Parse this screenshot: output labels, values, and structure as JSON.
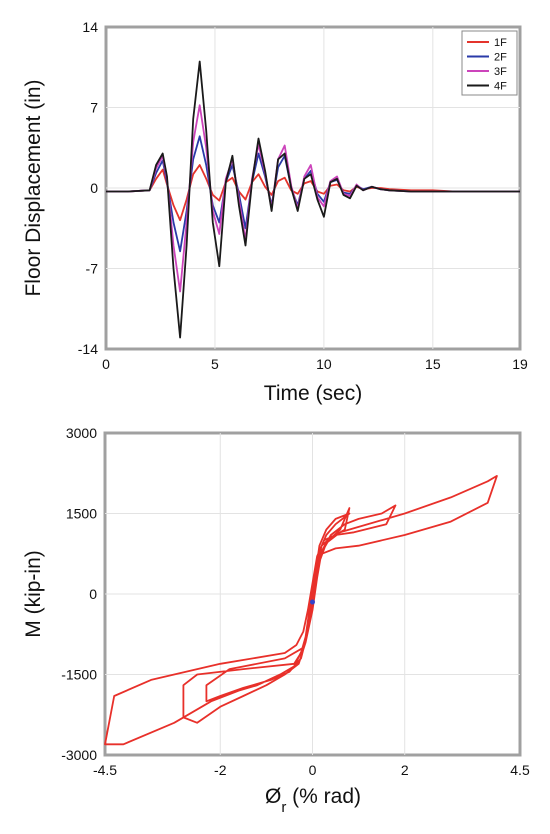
{
  "chart_data": [
    {
      "type": "line",
      "title": "",
      "xlabel": "Time (sec)",
      "ylabel": "Floor Displacement (in)",
      "xlim": [
        0,
        19
      ],
      "ylim": [
        -14,
        14
      ],
      "xticks": [
        0,
        5,
        10,
        15,
        19
      ],
      "yticks": [
        -14,
        -7,
        0,
        7,
        14
      ],
      "grid": true,
      "legend": "top-right",
      "x": [
        0,
        1,
        2,
        2.3,
        2.6,
        2.8,
        3.1,
        3.4,
        3.7,
        4.0,
        4.3,
        4.6,
        4.9,
        5.2,
        5.5,
        5.8,
        6.1,
        6.4,
        6.7,
        7.0,
        7.3,
        7.6,
        7.9,
        8.2,
        8.5,
        8.8,
        9.1,
        9.4,
        9.7,
        10.0,
        10.3,
        10.6,
        10.9,
        11.2,
        11.5,
        11.8,
        12.2,
        12.6,
        13.0,
        14.0,
        15.0,
        16.0,
        17.0,
        18.0,
        19.0
      ],
      "series": [
        {
          "name": "1F",
          "color": "#e4342c",
          "values": [
            -0.3,
            -0.3,
            -0.2,
            0.8,
            1.6,
            0.3,
            -1.5,
            -2.8,
            -1.0,
            1.2,
            2.0,
            0.8,
            -0.6,
            -1.1,
            0.5,
            0.9,
            -0.3,
            -1.0,
            0.5,
            1.2,
            0.1,
            -0.6,
            0.6,
            0.9,
            -0.2,
            -0.5,
            0.4,
            0.6,
            -0.3,
            -0.5,
            0.2,
            0.3,
            -0.2,
            -0.3,
            0.1,
            -0.1,
            0,
            0,
            -0.1,
            -0.2,
            -0.2,
            -0.3,
            -0.3,
            -0.3,
            -0.3
          ]
        },
        {
          "name": "2F",
          "color": "#2a3aa8",
          "values": [
            -0.3,
            -0.3,
            -0.2,
            1.3,
            2.4,
            0.5,
            -3.0,
            -5.5,
            -2.0,
            2.5,
            4.5,
            2.0,
            -1.5,
            -3.0,
            0.5,
            2.0,
            -0.5,
            -3.5,
            0.5,
            3.0,
            1.0,
            -1.5,
            1.8,
            2.8,
            0,
            -1.5,
            0.8,
            1.5,
            -0.5,
            -1.2,
            0.5,
            0.7,
            -0.4,
            -0.5,
            0.2,
            -0.1,
            0.1,
            -0.1,
            -0.2,
            -0.3,
            -0.3,
            -0.3,
            -0.3,
            -0.3,
            -0.3
          ]
        },
        {
          "name": "3F",
          "color": "#cc44bb",
          "values": [
            -0.3,
            -0.3,
            -0.2,
            1.7,
            2.8,
            0.8,
            -5.0,
            -9.0,
            -3.0,
            4.0,
            7.2,
            3.5,
            -2.0,
            -4.0,
            0.8,
            2.5,
            -1.0,
            -4.5,
            0.8,
            3.8,
            1.3,
            -1.8,
            2.5,
            3.7,
            0.2,
            -1.8,
            1.0,
            2.0,
            -0.8,
            -1.6,
            0.6,
            1.0,
            -0.5,
            -0.7,
            0.3,
            -0.2,
            0.1,
            -0.1,
            -0.2,
            -0.3,
            -0.3,
            -0.3,
            -0.3,
            -0.3,
            -0.3
          ]
        },
        {
          "name": "4F",
          "color": "#1a1a1a",
          "values": [
            -0.3,
            -0.3,
            -0.2,
            2.0,
            3.0,
            1.0,
            -7.0,
            -13.0,
            -5.0,
            6.0,
            11.0,
            5.0,
            -3.0,
            -6.8,
            0.5,
            2.8,
            -1.5,
            -5.0,
            0.5,
            4.3,
            1.5,
            -2.0,
            2.5,
            3.0,
            0,
            -2.0,
            0.8,
            1.2,
            -1.0,
            -2.5,
            0.5,
            0.8,
            -0.6,
            -0.9,
            0.2,
            -0.2,
            0.1,
            -0.1,
            -0.2,
            -0.3,
            -0.3,
            -0.3,
            -0.3,
            -0.3,
            -0.3
          ]
        }
      ]
    },
    {
      "type": "line",
      "title": "",
      "xlabel": "Ø",
      "xlabel_subscript": "r",
      "xlabel_unit": " (% rad)",
      "ylabel": "M (kip-in)",
      "xlim": [
        -4.5,
        4.5
      ],
      "ylim": [
        -3000,
        3000
      ],
      "xticks": [
        -4.5,
        -2,
        0,
        2,
        4.5
      ],
      "yticks": [
        -3000,
        -1500,
        0,
        1500,
        3000
      ],
      "grid": true,
      "series": [
        {
          "name": "",
          "color": "#e8302a",
          "points": [
            [
              0,
              -200
            ],
            [
              0.1,
              400
            ],
            [
              0.15,
              800
            ],
            [
              0.3,
              1100
            ],
            [
              0.5,
              1300
            ],
            [
              0.8,
              1500
            ],
            [
              0.5,
              1400
            ],
            [
              0.3,
              1200
            ],
            [
              0.15,
              900
            ],
            [
              0.05,
              300
            ],
            [
              -0.05,
              -300
            ],
            [
              -0.15,
              -800
            ],
            [
              -0.25,
              -1100
            ],
            [
              -0.4,
              -1300
            ],
            [
              -1.5,
              -1400
            ],
            [
              -2.5,
              -1500
            ],
            [
              -2.8,
              -1700
            ],
            [
              -2.8,
              -2300
            ],
            [
              -2.5,
              -2400
            ],
            [
              -2.0,
              -2100
            ],
            [
              -1.5,
              -1900
            ],
            [
              -1.0,
              -1700
            ],
            [
              -0.6,
              -1500
            ],
            [
              -0.3,
              -1300
            ],
            [
              -0.15,
              -900
            ],
            [
              0,
              -300
            ],
            [
              0.1,
              300
            ],
            [
              0.2,
              800
            ],
            [
              0.4,
              1100
            ],
            [
              0.7,
              1300
            ],
            [
              1.0,
              1400
            ],
            [
              1.5,
              1500
            ],
            [
              1.8,
              1650
            ],
            [
              1.6,
              1300
            ],
            [
              0.9,
              1150
            ],
            [
              0.5,
              1100
            ],
            [
              0.25,
              1000
            ],
            [
              0.1,
              700
            ],
            [
              0,
              200
            ],
            [
              -0.1,
              -300
            ],
            [
              -0.2,
              -700
            ],
            [
              -0.35,
              -950
            ],
            [
              -0.6,
              -1100
            ],
            [
              -2.0,
              -1300
            ],
            [
              -3.5,
              -1600
            ],
            [
              -4.3,
              -1900
            ],
            [
              -4.5,
              -2800
            ],
            [
              -4.1,
              -2800
            ],
            [
              -3.0,
              -2400
            ],
            [
              -2.2,
              -2000
            ],
            [
              -1.6,
              -1800
            ],
            [
              -1.2,
              -1700
            ],
            [
              -0.7,
              -1500
            ],
            [
              -0.4,
              -1350
            ],
            [
              -0.2,
              -1000
            ],
            [
              -0.05,
              -500
            ],
            [
              0.05,
              100
            ],
            [
              0.15,
              600
            ],
            [
              0.3,
              950
            ],
            [
              0.6,
              1150
            ],
            [
              1.0,
              1250
            ],
            [
              2.0,
              1500
            ],
            [
              3.0,
              1800
            ],
            [
              3.8,
              2100
            ],
            [
              4.0,
              2200
            ],
            [
              3.8,
              1700
            ],
            [
              3.0,
              1350
            ],
            [
              2.0,
              1100
            ],
            [
              1.0,
              900
            ],
            [
              0.5,
              850
            ],
            [
              0.2,
              750
            ],
            [
              0.05,
              400
            ],
            [
              -0.05,
              -200
            ],
            [
              -0.1,
              -500
            ],
            [
              -0.15,
              -800
            ],
            [
              -0.2,
              -1000
            ],
            [
              -0.6,
              -1200
            ],
            [
              -1.8,
              -1400
            ],
            [
              -2.3,
              -1700
            ],
            [
              -2.3,
              -2000
            ],
            [
              -2.0,
              -1900
            ],
            [
              -1.5,
              -1750
            ],
            [
              -0.9,
              -1600
            ],
            [
              -0.5,
              -1450
            ],
            [
              -0.25,
              -1200
            ],
            [
              -0.1,
              -700
            ],
            [
              0,
              -100
            ],
            [
              0.05,
              300
            ],
            [
              0.15,
              700
            ],
            [
              0.35,
              1000
            ],
            [
              0.6,
              1200
            ],
            [
              0.8,
              1600
            ],
            [
              0.7,
              1200
            ],
            [
              0.4,
              1050
            ],
            [
              0.2,
              900
            ],
            [
              0.05,
              400
            ],
            [
              0,
              0
            ]
          ]
        },
        {
          "name": "",
          "color": "#3344cc",
          "points": [
            [
              0,
              -150
            ]
          ]
        }
      ]
    }
  ]
}
